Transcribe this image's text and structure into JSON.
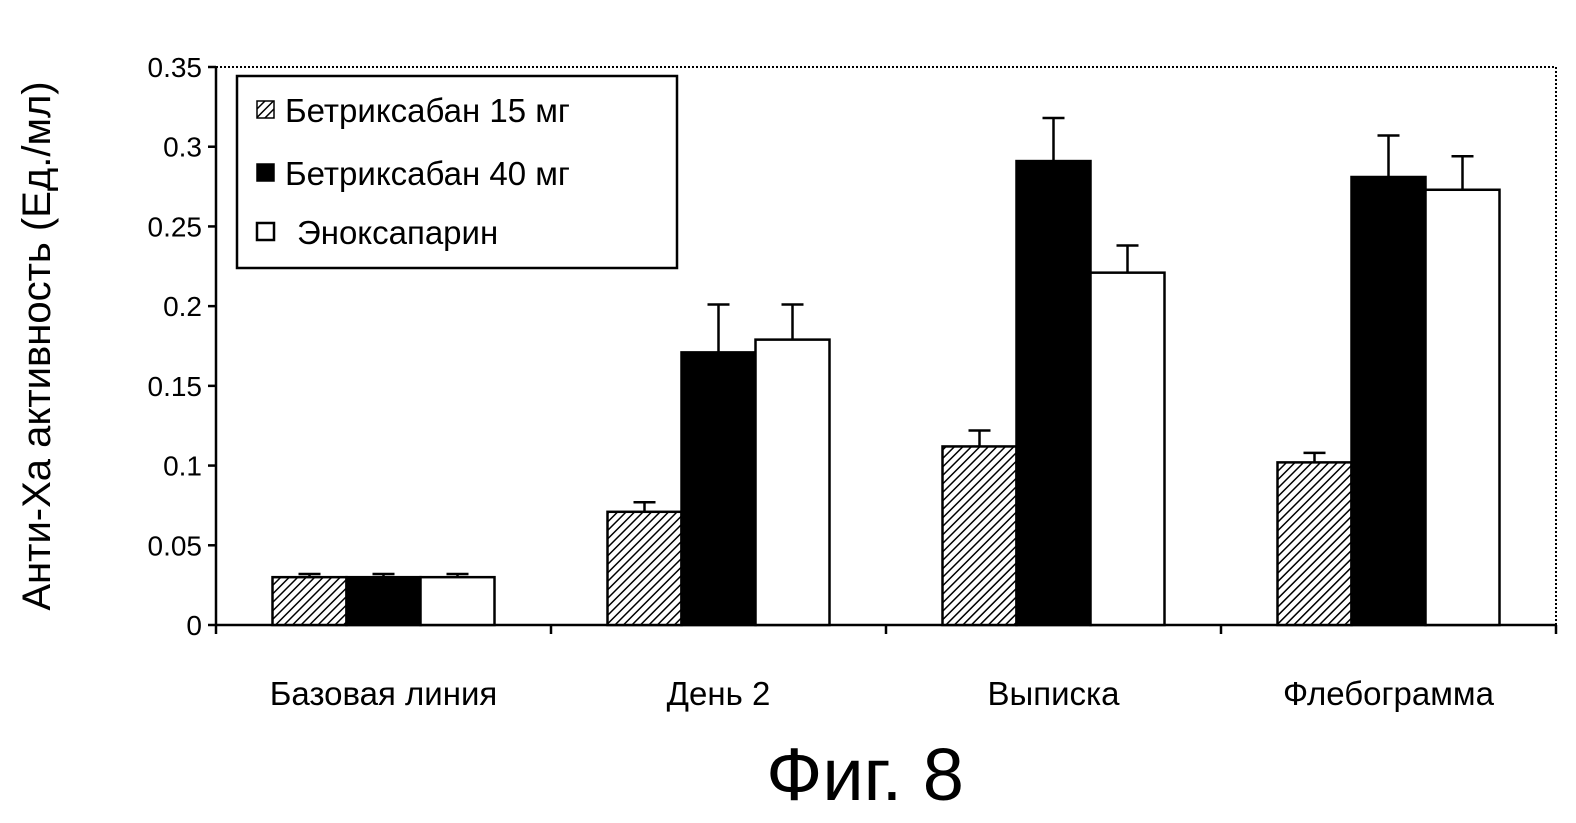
{
  "chart_data": {
    "type": "bar",
    "categories": [
      "Базовая линия",
      "День 2",
      "Выписка",
      "Флебограмма"
    ],
    "series": [
      {
        "name": "Бетриксабан 15 мг",
        "values": [
          0.03,
          0.071,
          0.112,
          0.102
        ],
        "errors": [
          0.002,
          0.006,
          0.01,
          0.006
        ],
        "fill": "hatched"
      },
      {
        "name": "Бетриксабан 40 мг",
        "values": [
          0.03,
          0.171,
          0.291,
          0.281
        ],
        "errors": [
          0.002,
          0.03,
          0.027,
          0.026
        ],
        "fill": "#000000"
      },
      {
        "name": "Эноксапарин",
        "values": [
          0.03,
          0.179,
          0.221,
          0.273
        ],
        "errors": [
          0.002,
          0.022,
          0.017,
          0.021
        ],
        "fill": "#ffffff"
      }
    ],
    "ylim": [
      0,
      0.35
    ],
    "yticks": [
      "0",
      "0.05",
      "0.1",
      "0.15",
      "0.2",
      "0.25",
      "0.3",
      "0.35"
    ],
    "ylabel": "Анти-Xa активность (Ед./мл)",
    "xlabel": "",
    "legend_position": "top-left",
    "grid": false
  },
  "caption": "Фиг. 8"
}
